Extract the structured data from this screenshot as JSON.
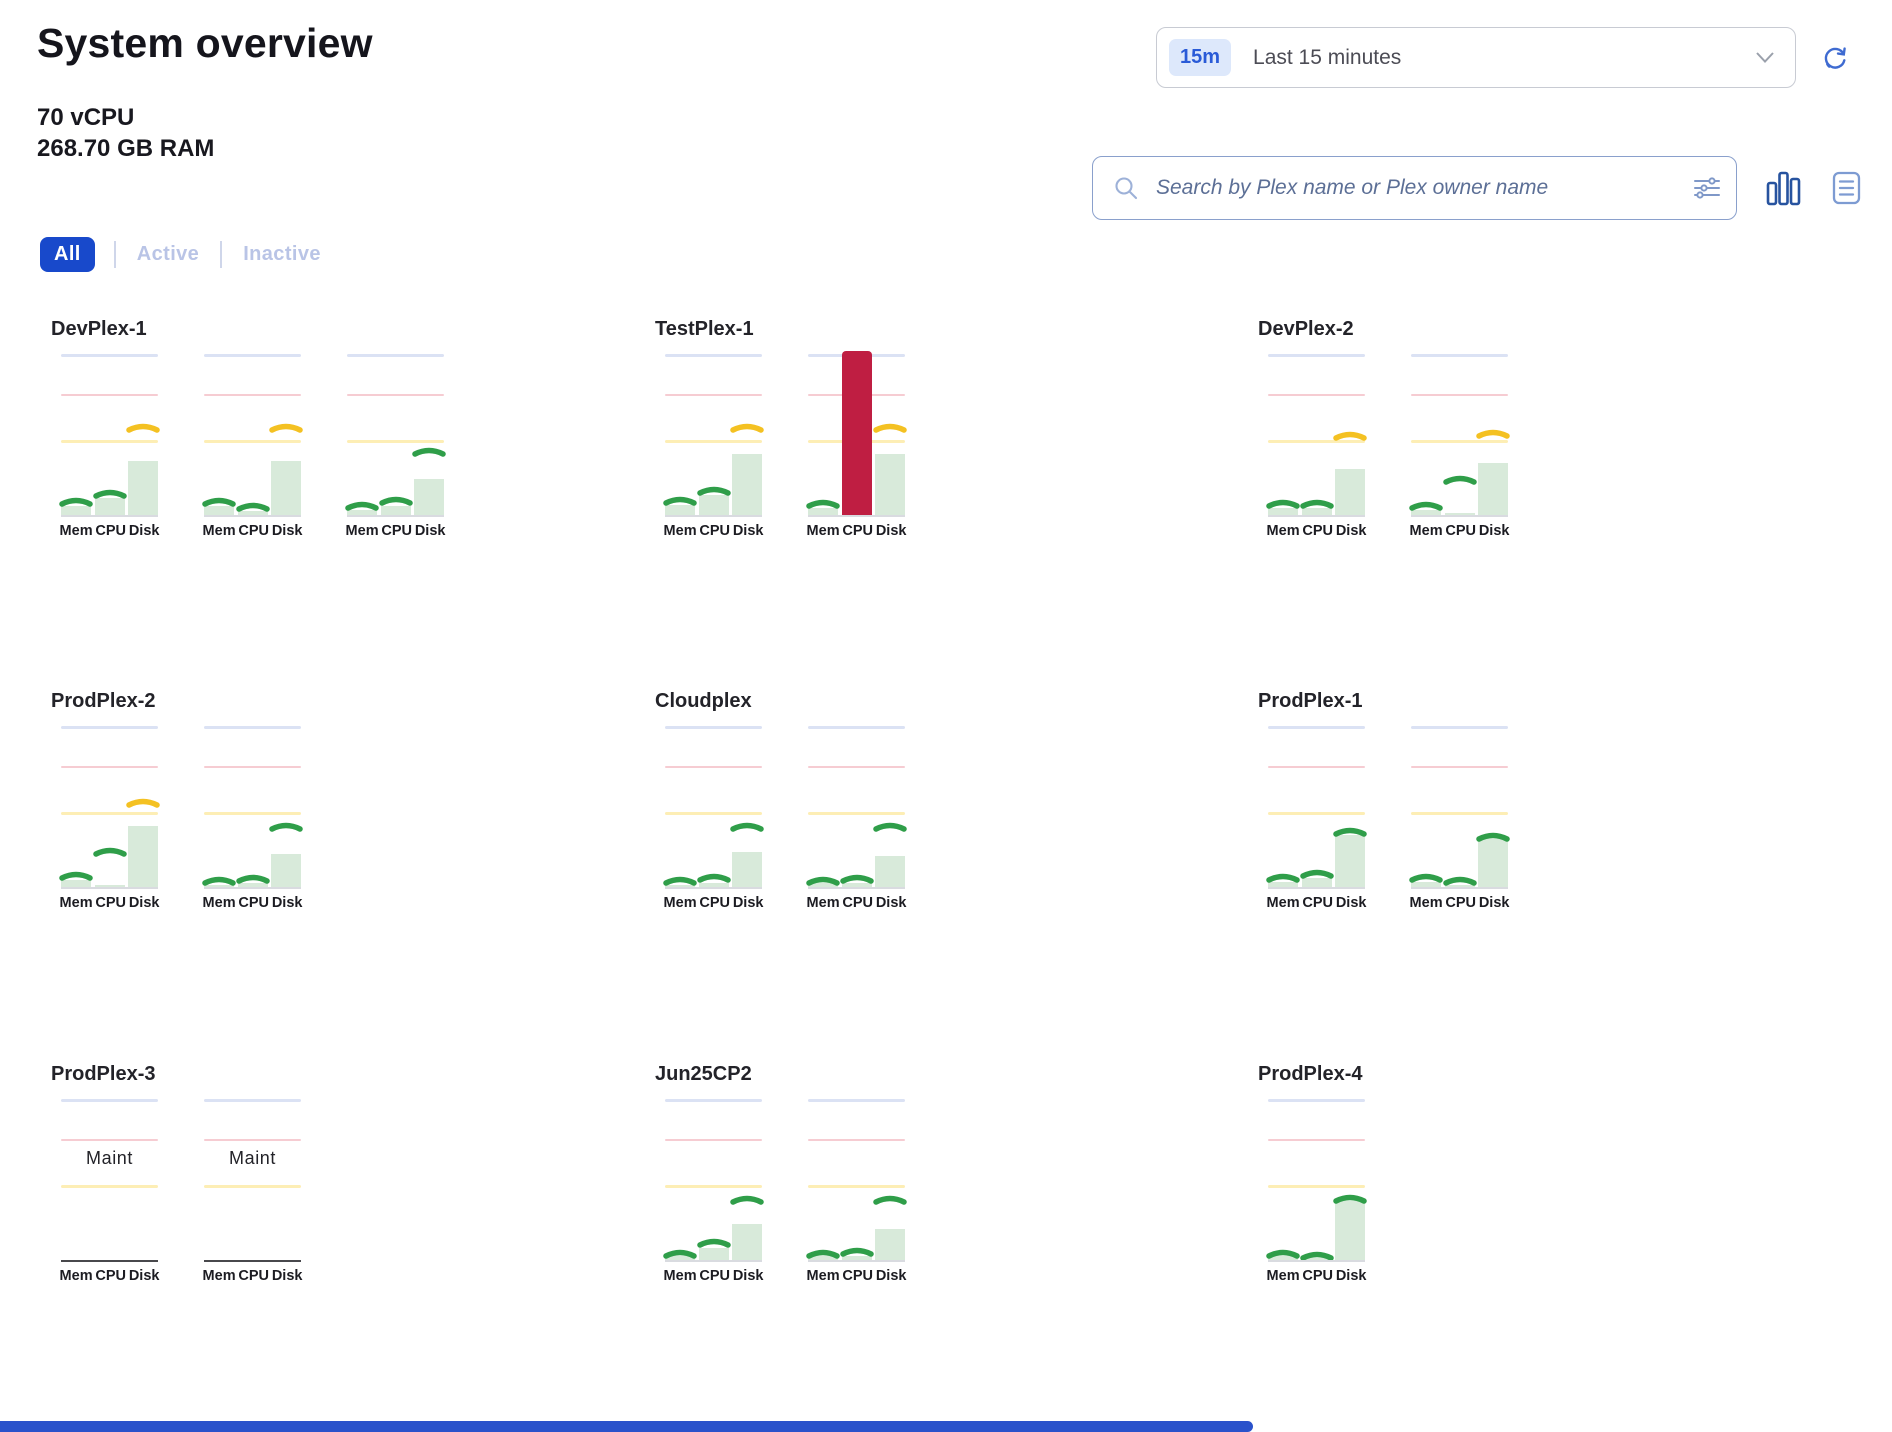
{
  "header": {
    "title": "System overview",
    "vcpu": "70 vCPU",
    "ram": "268.70 GB RAM",
    "time_badge": "15m",
    "time_label": "Last 15 minutes",
    "search_placeholder": "Search by Plex name or Plex owner name",
    "filters": [
      {
        "label": "All",
        "active": true
      },
      {
        "label": "Active",
        "active": false
      },
      {
        "label": "Inactive",
        "active": false
      }
    ],
    "icons": [
      "clock-badge",
      "chevron-down-icon",
      "refresh-icon",
      "search-icon",
      "filter-sliders-icon",
      "bar-chart-view-icon",
      "list-view-icon"
    ]
  },
  "metric_labels": [
    "Mem",
    "CPU",
    "Disk"
  ],
  "maint_label": "Maint",
  "thresholds": {
    "red_line_pct": 75,
    "yellow_line_pct": 46,
    "top_line_pct": 100
  },
  "colors": {
    "accent_blue": "#1849cb",
    "badge_bg": "#dde8fb",
    "badge_text": "#2a5bd7",
    "line_top": "#dbe2f4",
    "line_red": "#f6ccd2",
    "line_yellow": "#fdeeb5",
    "bar_fill": "#d8eada",
    "marker_green": "#2f9e49",
    "marker_yellow": "#f4c122",
    "marker_red": "#bf1e42",
    "scrollbar_blue": "#2a52cb"
  },
  "chart_data": {
    "type": "bar",
    "note": "bar and marker values are percent of gauge height (top line = 100)",
    "plexes": [
      {
        "name": "DevPlex-1",
        "row": 0,
        "col": 0,
        "nodes": [
          {
            "status": "active",
            "metrics": [
              {
                "label": "Mem",
                "bar": 6,
                "marker": 9,
                "color": "green"
              },
              {
                "label": "CPU",
                "bar": 11,
                "marker": 14,
                "color": "green"
              },
              {
                "label": "Disk",
                "bar": 34,
                "marker": 55,
                "color": "yellow"
              }
            ]
          },
          {
            "status": "active",
            "metrics": [
              {
                "label": "Mem",
                "bar": 6,
                "marker": 9,
                "color": "green"
              },
              {
                "label": "CPU",
                "bar": 3,
                "marker": 6,
                "color": "green"
              },
              {
                "label": "Disk",
                "bar": 34,
                "marker": 55,
                "color": "yellow"
              }
            ]
          },
          {
            "status": "active",
            "metrics": [
              {
                "label": "Mem",
                "bar": 4,
                "marker": 7,
                "color": "green"
              },
              {
                "label": "CPU",
                "bar": 6,
                "marker": 10,
                "color": "green"
              },
              {
                "label": "Disk",
                "bar": 23,
                "marker": 40,
                "color": "green"
              }
            ]
          }
        ]
      },
      {
        "name": "TestPlex-1",
        "row": 0,
        "col": 1,
        "nodes": [
          {
            "status": "active",
            "metrics": [
              {
                "label": "Mem",
                "bar": 7,
                "marker": 10,
                "color": "green"
              },
              {
                "label": "CPU",
                "bar": 13,
                "marker": 16,
                "color": "green"
              },
              {
                "label": "Disk",
                "bar": 38,
                "marker": 55,
                "color": "yellow"
              }
            ]
          },
          {
            "status": "active",
            "metrics": [
              {
                "label": "Mem",
                "bar": 5,
                "marker": 8,
                "color": "green"
              },
              {
                "label": "CPU",
                "bar": 102,
                "marker": null,
                "color": "red"
              },
              {
                "label": "Disk",
                "bar": 38,
                "marker": 55,
                "color": "yellow"
              }
            ]
          }
        ]
      },
      {
        "name": "DevPlex-2",
        "row": 0,
        "col": 2,
        "nodes": [
          {
            "status": "active",
            "metrics": [
              {
                "label": "Mem",
                "bar": 5,
                "marker": 8,
                "color": "green"
              },
              {
                "label": "CPU",
                "bar": 5,
                "marker": 8,
                "color": "green"
              },
              {
                "label": "Disk",
                "bar": 29,
                "marker": 50,
                "color": "yellow"
              }
            ]
          },
          {
            "status": "active",
            "metrics": [
              {
                "label": "Mem",
                "bar": 4,
                "marker": 7,
                "color": "green"
              },
              {
                "label": "CPU",
                "bar": 2,
                "marker": 23,
                "color": "green"
              },
              {
                "label": "Disk",
                "bar": 33,
                "marker": 51,
                "color": "yellow"
              }
            ]
          }
        ]
      },
      {
        "name": "ProdPlex-2",
        "row": 1,
        "col": 0,
        "nodes": [
          {
            "status": "active",
            "metrics": [
              {
                "label": "Mem",
                "bar": 5,
                "marker": 8,
                "color": "green"
              },
              {
                "label": "CPU",
                "bar": 2,
                "marker": 23,
                "color": "green"
              },
              {
                "label": "Disk",
                "bar": 38,
                "marker": 53,
                "color": "yellow"
              }
            ]
          },
          {
            "status": "active",
            "metrics": [
              {
                "label": "Mem",
                "bar": 2,
                "marker": 5,
                "color": "green"
              },
              {
                "label": "CPU",
                "bar": 3,
                "marker": 6,
                "color": "green"
              },
              {
                "label": "Disk",
                "bar": 21,
                "marker": 38,
                "color": "green"
              }
            ]
          }
        ]
      },
      {
        "name": "Cloudplex",
        "row": 1,
        "col": 1,
        "nodes": [
          {
            "status": "active",
            "metrics": [
              {
                "label": "Mem",
                "bar": 2,
                "marker": 5,
                "color": "green"
              },
              {
                "label": "CPU",
                "bar": 3,
                "marker": 7,
                "color": "green"
              },
              {
                "label": "Disk",
                "bar": 22,
                "marker": 38,
                "color": "green"
              }
            ]
          },
          {
            "status": "active",
            "metrics": [
              {
                "label": "Mem",
                "bar": 3,
                "marker": 5,
                "color": "green"
              },
              {
                "label": "CPU",
                "bar": 3,
                "marker": 6,
                "color": "green"
              },
              {
                "label": "Disk",
                "bar": 20,
                "marker": 38,
                "color": "green"
              }
            ]
          }
        ]
      },
      {
        "name": "ProdPlex-1",
        "row": 1,
        "col": 2,
        "nodes": [
          {
            "status": "active",
            "metrics": [
              {
                "label": "Mem",
                "bar": 4,
                "marker": 7,
                "color": "green"
              },
              {
                "label": "CPU",
                "bar": 6,
                "marker": 9,
                "color": "green"
              },
              {
                "label": "Disk",
                "bar": 33,
                "marker": 35,
                "color": "green"
              }
            ]
          },
          {
            "status": "active",
            "metrics": [
              {
                "label": "Mem",
                "bar": 4,
                "marker": 7,
                "color": "green"
              },
              {
                "label": "CPU",
                "bar": 2,
                "marker": 5,
                "color": "green"
              },
              {
                "label": "Disk",
                "bar": 30,
                "marker": 32,
                "color": "green"
              }
            ]
          }
        ]
      },
      {
        "name": "ProdPlex-3",
        "row": 2,
        "col": 0,
        "nodes": [
          {
            "status": "maint",
            "metrics": []
          },
          {
            "status": "maint",
            "metrics": []
          }
        ]
      },
      {
        "name": "Jun25CP2",
        "row": 2,
        "col": 1,
        "nodes": [
          {
            "status": "active",
            "metrics": [
              {
                "label": "Mem",
                "bar": 3,
                "marker": 5,
                "color": "green"
              },
              {
                "label": "CPU",
                "bar": 8,
                "marker": 12,
                "color": "green"
              },
              {
                "label": "Disk",
                "bar": 23,
                "marker": 38,
                "color": "green"
              }
            ]
          },
          {
            "status": "active",
            "metrics": [
              {
                "label": "Mem",
                "bar": 3,
                "marker": 5,
                "color": "green"
              },
              {
                "label": "CPU",
                "bar": 3,
                "marker": 6,
                "color": "green"
              },
              {
                "label": "Disk",
                "bar": 20,
                "marker": 38,
                "color": "green"
              }
            ]
          }
        ]
      },
      {
        "name": "ProdPlex-4",
        "row": 2,
        "col": 2,
        "nodes": [
          {
            "status": "active",
            "metrics": [
              {
                "label": "Mem",
                "bar": 3,
                "marker": 5,
                "color": "green"
              },
              {
                "label": "CPU",
                "bar": 2,
                "marker": 4,
                "color": "green"
              },
              {
                "label": "Disk",
                "bar": 37,
                "marker": 39,
                "color": "green"
              }
            ]
          }
        ]
      }
    ]
  }
}
